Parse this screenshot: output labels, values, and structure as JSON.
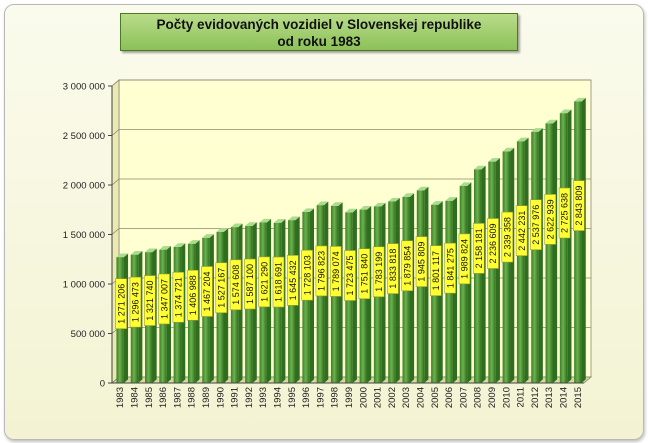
{
  "chart_data": {
    "type": "bar",
    "title_line1": "Počty evidovaných vozidiel v Slovenskej republike",
    "title_line2": "od roku 1983",
    "xlabel": "",
    "ylabel": "",
    "ylim": [
      0,
      3000000
    ],
    "y_ticks": [
      0,
      500000,
      1000000,
      1500000,
      2000000,
      2500000,
      3000000
    ],
    "y_tick_labels": [
      "0",
      "500 000",
      "1 000 000",
      "1 500 000",
      "2 000 000",
      "2 500 000",
      "3 000 000"
    ],
    "categories": [
      "1983",
      "1984",
      "1985",
      "1986",
      "1987",
      "1988",
      "1989",
      "1990",
      "1991",
      "1992",
      "1993",
      "1994",
      "1995",
      "1996",
      "1997",
      "1998",
      "1999",
      "2000",
      "2001",
      "2002",
      "2003",
      "2004",
      "2005",
      "2006",
      "2007",
      "2008",
      "2009",
      "2010",
      "2011",
      "2012",
      "2013",
      "2014",
      "2015"
    ],
    "values": [
      1271206,
      1296473,
      1321740,
      1347007,
      1374721,
      1406988,
      1467204,
      1527167,
      1574608,
      1587100,
      1621290,
      1618691,
      1645432,
      1728103,
      1796823,
      1789074,
      1723475,
      1751840,
      1783199,
      1833818,
      1879854,
      1945809,
      1801117,
      1841275,
      1989824,
      2158181,
      2236609,
      2339358,
      2442231,
      2537976,
      2622939,
      2725638,
      2843809
    ],
    "value_labels": [
      "1 271 206",
      "1 296 473",
      "1 321 740",
      "1 347 007",
      "1 374 721",
      "1 406 988",
      "1 467 204",
      "1 527 167",
      "1 574 608",
      "1 587 100",
      "1 621 290",
      "1 618 691",
      "1 645 432",
      "1 728 103",
      "1 796 823",
      "1 789 074",
      "1 723 475",
      "1 751 840",
      "1 783 199",
      "1 833 818",
      "1 879 854",
      "1 945 809",
      "1 801 117",
      "1 841 275",
      "1 989 824",
      "2 158 181",
      "2 236 609",
      "2 339 358",
      "2 442 231",
      "2 537 976",
      "2 622 939",
      "2 725 638",
      "2 843 809"
    ],
    "grid": true,
    "legend": "none",
    "colors": {
      "bar": "#4f9a35",
      "bar_dark": "#2f6e1f",
      "bar_light": "#a9dc8c",
      "label_bg": "#ffff33",
      "plot_wall": "#ffffd2",
      "title_bg": "#a6d273"
    }
  }
}
